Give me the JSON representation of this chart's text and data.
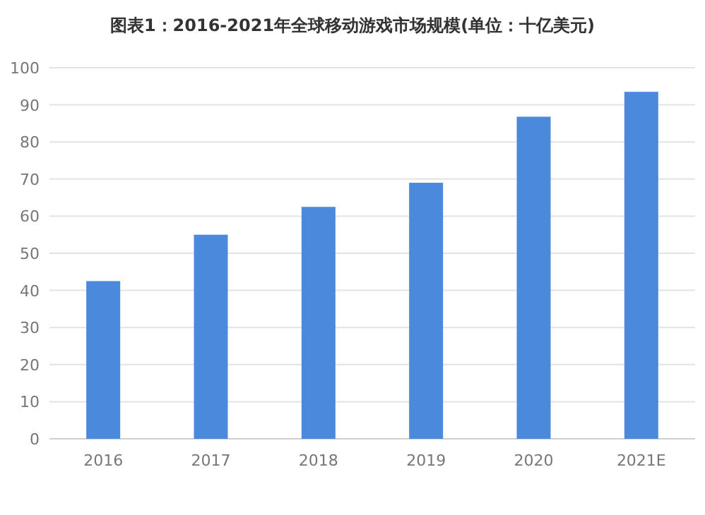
{
  "chart_data": {
    "type": "bar",
    "title": "图表1：2016-2021年全球移动游戏市场规模(单位：十亿美元)",
    "categories": [
      "2016",
      "2017",
      "2018",
      "2019",
      "2020",
      "2021E"
    ],
    "values": [
      42.5,
      55,
      62.5,
      69,
      86.8,
      93.5
    ],
    "color": "#4a89dc",
    "ylim": [
      0,
      100
    ],
    "yticks": [
      0,
      10,
      20,
      30,
      40,
      50,
      60,
      70,
      80,
      90,
      100
    ],
    "grid": "y"
  }
}
